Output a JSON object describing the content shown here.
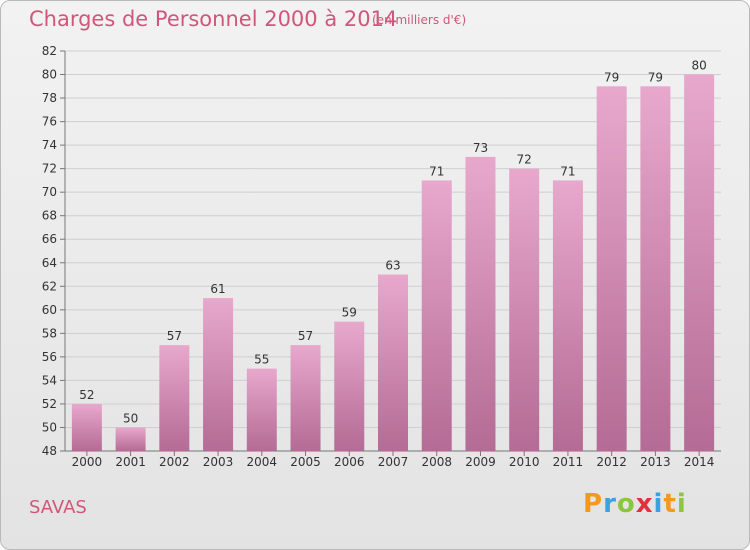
{
  "header": {
    "title": "Charges de Personnel 2000 à 2014",
    "subtitle": "(en milliers d'€)"
  },
  "commune": "SAVAS",
  "logo": {
    "text": "Proxiti",
    "letters": [
      {
        "ch": "P",
        "color": "#f39a1e"
      },
      {
        "ch": "r",
        "color": "#3aa3df"
      },
      {
        "ch": "o",
        "color": "#8cc63f"
      },
      {
        "ch": "x",
        "color": "#e2303d"
      },
      {
        "ch": "i",
        "color": "#3aa3df"
      },
      {
        "ch": "t",
        "color": "#f39a1e"
      },
      {
        "ch": "i",
        "color": "#8cc63f"
      }
    ]
  },
  "colors": {
    "bar_top": "#e8a8cc",
    "bar_bottom": "#b46b95",
    "accent": "#d0567c"
  },
  "chart_data": {
    "type": "bar",
    "categories": [
      "2000",
      "2001",
      "2002",
      "2003",
      "2004",
      "2005",
      "2006",
      "2007",
      "2008",
      "2009",
      "2010",
      "2011",
      "2012",
      "2013",
      "2014"
    ],
    "values": [
      52,
      50,
      57,
      61,
      55,
      57,
      59,
      63,
      71,
      73,
      72,
      71,
      79,
      79,
      80
    ],
    "title": "Charges de Personnel 2000 à 2014",
    "ylim": [
      48,
      82
    ],
    "yticks": [
      48,
      50,
      52,
      54,
      56,
      58,
      60,
      62,
      64,
      66,
      68,
      70,
      72,
      74,
      76,
      78,
      80,
      82
    ],
    "grid": true
  }
}
